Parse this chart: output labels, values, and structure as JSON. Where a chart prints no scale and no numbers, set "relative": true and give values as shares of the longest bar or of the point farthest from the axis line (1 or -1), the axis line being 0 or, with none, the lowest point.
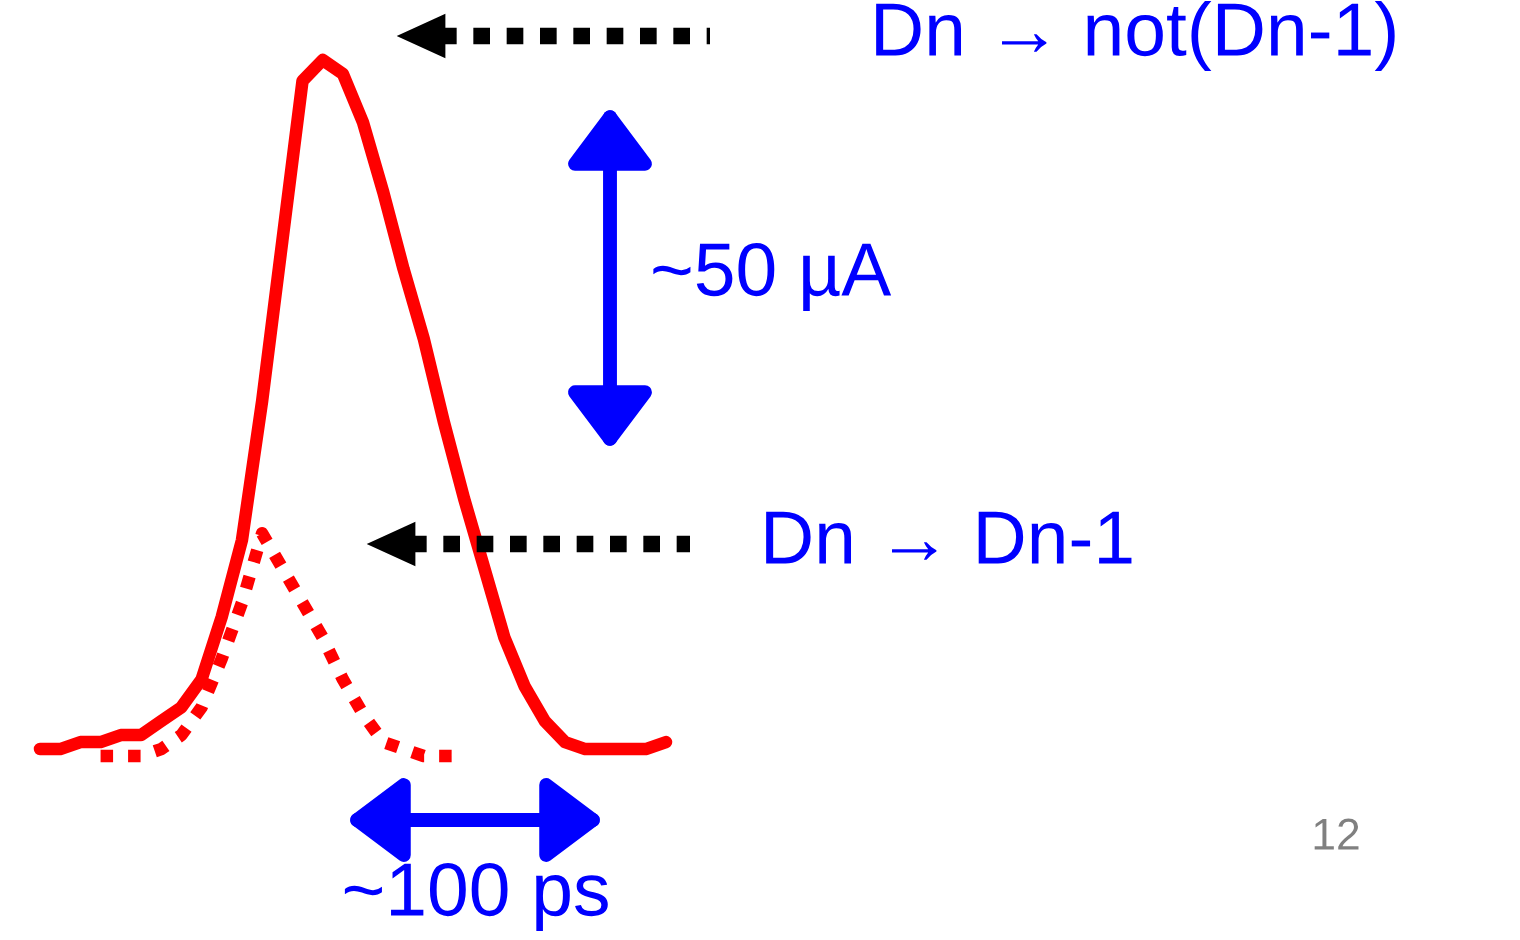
{
  "chart_data": {
    "type": "line",
    "relative": true,
    "categories": [
      null,
      null,
      null,
      null,
      null,
      null,
      null,
      null,
      null,
      null,
      null,
      null,
      null,
      null,
      null,
      null,
      null,
      null,
      null,
      null,
      null,
      null,
      null,
      null,
      null,
      null,
      null,
      null,
      null,
      null,
      null,
      null
    ],
    "series": [
      {
        "color": "#ff0000",
        "line_style": "solid",
        "values": [
          0.01,
          0.01,
          0.02,
          0.02,
          0.03,
          0.03,
          0.05,
          0.07,
          0.11,
          0.2,
          0.31,
          0.51,
          0.74,
          0.97,
          1.0,
          0.98,
          0.91,
          0.81,
          0.7,
          0.6,
          0.48,
          0.37,
          0.27,
          0.17,
          0.1,
          0.05,
          0.02,
          0.01,
          0.01,
          0.01,
          0.01,
          0.02
        ]
      },
      {
        "color": "#ff0000",
        "line_style": "dotted",
        "values": [
          null,
          null,
          null,
          0,
          0,
          0,
          0.01,
          0.03,
          0.07,
          0.14,
          0.22,
          0.32,
          0.27,
          0.22,
          0.17,
          0.11,
          0.06,
          0.02,
          0.01,
          0,
          0,
          0,
          null,
          null,
          null,
          null,
          null,
          null,
          null,
          null,
          null,
          null
        ]
      }
    ],
    "annotations": [
      "Dn → not(Dn-1)",
      "Dn → Dn-1",
      "~50 µA",
      "~100 ps",
      "12"
    ]
  }
}
